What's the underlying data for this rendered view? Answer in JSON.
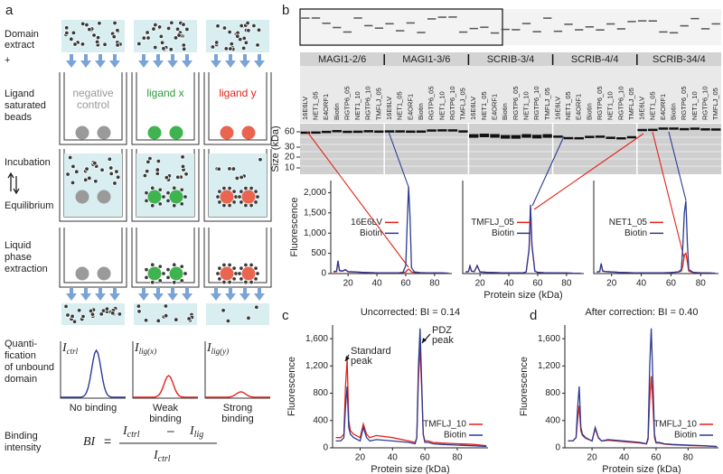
{
  "panel_a": {
    "label": "a",
    "steps": [
      {
        "lines": [
          "Domain",
          "extract"
        ]
      },
      {
        "lines": [
          "+"
        ]
      },
      {
        "lines": [
          "Ligand",
          "saturated",
          "beads"
        ]
      },
      {
        "lines": [
          "Incubation"
        ]
      },
      {
        "lines": [
          "Equilibrium"
        ]
      },
      {
        "lines": [
          "Liquid",
          "phase",
          "extraction"
        ]
      },
      {
        "lines": [
          "Quanti-",
          "fication",
          "of unbound",
          "domain"
        ]
      },
      {
        "lines": [
          "Binding",
          "intensity"
        ]
      }
    ],
    "beads": [
      [
        "negative",
        "control"
      ],
      [
        "ligand x"
      ],
      [
        "ligand  y"
      ]
    ],
    "quant_labels": [
      {
        "symbol": "I",
        "sub": "ctrl"
      },
      {
        "symbol": "I",
        "sub": "lig(x)"
      },
      {
        "symbol": "I",
        "sub": "lig(y)"
      }
    ],
    "outcomes": [
      [
        "No binding"
      ],
      [
        "Weak",
        "binding"
      ],
      [
        "Strong",
        "binding"
      ]
    ],
    "formula": {
      "lhs": "BI",
      "eq": "=",
      "num_1": "I",
      "num_1_sub": "ctrl",
      "minus": "–",
      "num_2": "I",
      "num_2_sub": "lig",
      "den": "I",
      "den_sub": "ctrl"
    }
  },
  "panel_b": {
    "label": "b",
    "groups": [
      {
        "name": "MAGI1-2/6",
        "lanes": [
          "16E6LV",
          "NET1_05",
          "E4ORF1",
          "Biotin",
          "RGTP6_05",
          "NET1_10",
          "RGTP6_10",
          "TMFLJ_05"
        ]
      },
      {
        "name": "MAGI1-3/6",
        "lanes": [
          "16E6LV",
          "NET1_05",
          "E4ORF1",
          "Biotin",
          "RGTP6_05",
          "NET1_10",
          "RGTP6_10",
          "TMFLJ_05"
        ]
      },
      {
        "name": "SCRIB-3/4",
        "lanes": [
          "16E6LV",
          "NET1_05",
          "E4ORF1",
          "Biotin",
          "RGTP6_05",
          "NET1_10",
          "RGTP6_10",
          "TMFLJ_05"
        ]
      },
      {
        "name": "SCRIB-4/4",
        "lanes": [
          "16E6LV",
          "NET1_05",
          "E4ORF1",
          "Biotin",
          "RGTP6_05",
          "NET1_10",
          "RGTP6_10",
          "TMFLJ_05"
        ]
      },
      {
        "name": "SCRIB-34/4",
        "lanes": [
          "16E6LV",
          "NET1_05",
          "E4ORF1",
          "Biotin",
          "RGTP6_05",
          "NET1_10",
          "RGTP6_10",
          "TMFLJ_05"
        ]
      }
    ],
    "gel_axis": {
      "label": "Size (kDa)",
      "ticks": [
        "60",
        "30",
        "20",
        "10"
      ]
    }
  },
  "panel_c": {
    "label": "c"
  },
  "panel_d": {
    "label": "d"
  },
  "chart_data": [
    {
      "type": "line",
      "ylabel": "Fluorescence",
      "legend": "center",
      "x": [
        10,
        12,
        13,
        14,
        16,
        18,
        20,
        25,
        30,
        35,
        40,
        45,
        50,
        55,
        58,
        60,
        61,
        62,
        63,
        64,
        66,
        70,
        75,
        80,
        85,
        90
      ],
      "xlim": [
        8,
        92
      ],
      "xticks": [
        20,
        40,
        60,
        80
      ],
      "ylim": [
        0,
        2300
      ],
      "yticks": [
        0,
        500,
        {
          "value": 1000,
          "label": "1,000"
        },
        {
          "value": 1500,
          "label": "1,500"
        },
        {
          "value": 2000,
          "label": "2,000"
        }
      ],
      "series": [
        {
          "name": "16E6LV",
          "color": "#e2231a",
          "values": [
            40,
            50,
            300,
            70,
            55,
            90,
            45,
            35,
            28,
            22,
            18,
            18,
            18,
            18,
            25,
            40,
            80,
            110,
            80,
            40,
            25,
            20,
            18,
            18,
            15,
            10
          ]
        },
        {
          "name": "Biotin",
          "color": "#2c3b92",
          "values": [
            50,
            60,
            320,
            80,
            60,
            100,
            50,
            40,
            30,
            25,
            20,
            20,
            20,
            20,
            30,
            200,
            1200,
            2150,
            1400,
            150,
            40,
            25,
            20,
            20,
            15,
            10
          ]
        }
      ]
    },
    {
      "type": "line",
      "xlabel": "Protein size (kDa)",
      "legend": "center",
      "x": [
        10,
        12,
        13,
        14,
        16,
        18,
        20,
        25,
        30,
        35,
        40,
        45,
        50,
        52,
        54,
        55,
        56,
        58,
        60,
        65,
        70,
        75,
        80,
        85,
        90
      ],
      "xlim": [
        8,
        92
      ],
      "xticks": [
        20,
        40,
        60,
        80
      ],
      "ylim": [
        0,
        2300
      ],
      "series": [
        {
          "name": "TMFLJ_05",
          "color": "#e2231a",
          "values": [
            40,
            50,
            190,
            60,
            50,
            190,
            40,
            30,
            25,
            20,
            20,
            20,
            20,
            40,
            580,
            1650,
            680,
            60,
            30,
            20,
            20,
            15,
            15,
            10,
            10
          ]
        },
        {
          "name": "Biotin",
          "color": "#2c3b92",
          "values": [
            40,
            50,
            200,
            60,
            50,
            200,
            40,
            30,
            25,
            20,
            20,
            20,
            20,
            40,
            600,
            1700,
            700,
            60,
            30,
            20,
            20,
            15,
            15,
            10,
            10
          ]
        }
      ]
    },
    {
      "type": "line",
      "legend": "center",
      "x": [
        10,
        12,
        13,
        14,
        16,
        20,
        25,
        30,
        35,
        40,
        45,
        50,
        55,
        60,
        65,
        67,
        68,
        69,
        70,
        71,
        72,
        75,
        80,
        85,
        90
      ],
      "xlim": [
        8,
        92
      ],
      "xticks": [
        20,
        40,
        60,
        80
      ],
      "ylim": [
        0,
        2300
      ],
      "series": [
        {
          "name": "NET1_05",
          "color": "#e2231a",
          "values": [
            40,
            50,
            240,
            60,
            50,
            40,
            30,
            25,
            20,
            20,
            20,
            20,
            20,
            25,
            40,
            60,
            200,
            450,
            500,
            300,
            60,
            25,
            20,
            15,
            10
          ]
        },
        {
          "name": "Biotin",
          "color": "#2c3b92",
          "values": [
            40,
            50,
            250,
            60,
            50,
            40,
            30,
            25,
            20,
            20,
            20,
            20,
            20,
            25,
            40,
            100,
            700,
            1500,
            1800,
            800,
            100,
            30,
            20,
            15,
            10
          ]
        }
      ]
    },
    {
      "type": "line",
      "title": "Uncorrected: BI = 0.14",
      "ylabel": "Fluorescence",
      "xlabel": "Protein size (kDa)",
      "legend": "lower right",
      "annotations": [
        [
          "Standard",
          "peak"
        ],
        [
          "PDZ",
          "peak"
        ]
      ],
      "x": [
        5,
        8,
        10,
        11,
        12,
        13,
        14,
        16,
        20,
        22,
        24,
        26,
        30,
        40,
        50,
        54,
        55,
        56,
        57,
        58,
        59,
        60,
        62,
        65,
        70,
        80,
        90,
        98
      ],
      "xlim": [
        3,
        99
      ],
      "xticks": [
        20,
        40,
        60,
        80
      ],
      "ylim": [
        0,
        1800
      ],
      "yticks": [
        0,
        400,
        800,
        {
          "value": 1200,
          "label": "1,200"
        },
        {
          "value": 1600,
          "label": "1,600"
        }
      ],
      "series": [
        {
          "name": "TMFLJ_10",
          "color": "#e2231a",
          "values": [
            150,
            150,
            200,
            900,
            1300,
            400,
            250,
            200,
            150,
            350,
            200,
            150,
            180,
            150,
            100,
            80,
            150,
            1000,
            1480,
            900,
            200,
            100,
            100,
            80,
            70,
            60,
            50,
            30
          ]
        },
        {
          "name": "Biotin",
          "color": "#2c3b92",
          "values": [
            100,
            100,
            150,
            600,
            900,
            300,
            200,
            150,
            100,
            300,
            150,
            100,
            120,
            100,
            80,
            60,
            150,
            1200,
            1750,
            1000,
            200,
            80,
            80,
            60,
            50,
            40,
            30,
            20
          ]
        }
      ]
    },
    {
      "type": "line",
      "title": "After correction: BI = 0.40",
      "ylabel": "Fluorescence",
      "xlabel": "Protein size (kDa)",
      "legend": "lower right",
      "x": [
        5,
        8,
        10,
        11,
        12,
        13,
        14,
        16,
        20,
        22,
        24,
        26,
        30,
        40,
        50,
        54,
        55,
        56,
        57,
        58,
        59,
        60,
        62,
        65,
        70,
        80,
        90,
        98
      ],
      "xlim": [
        3,
        99
      ],
      "xticks": [
        20,
        40,
        60,
        80
      ],
      "ylim": [
        0,
        1800
      ],
      "yticks": [
        0,
        400,
        800,
        {
          "value": 1200,
          "label": "1,200"
        },
        {
          "value": 1600,
          "label": "1,600"
        }
      ],
      "series": [
        {
          "name": "TMFLJ_10",
          "color": "#e2231a",
          "values": [
            100,
            100,
            150,
            420,
            620,
            250,
            180,
            140,
            100,
            280,
            140,
            100,
            110,
            90,
            70,
            55,
            120,
            700,
            1050,
            650,
            150,
            70,
            70,
            55,
            45,
            35,
            28,
            18
          ]
        },
        {
          "name": "Biotin",
          "color": "#2c3b92",
          "values": [
            100,
            100,
            150,
            600,
            900,
            300,
            200,
            150,
            100,
            300,
            150,
            100,
            120,
            100,
            80,
            60,
            150,
            1200,
            1750,
            1000,
            200,
            80,
            80,
            60,
            50,
            40,
            30,
            20
          ]
        }
      ]
    }
  ]
}
